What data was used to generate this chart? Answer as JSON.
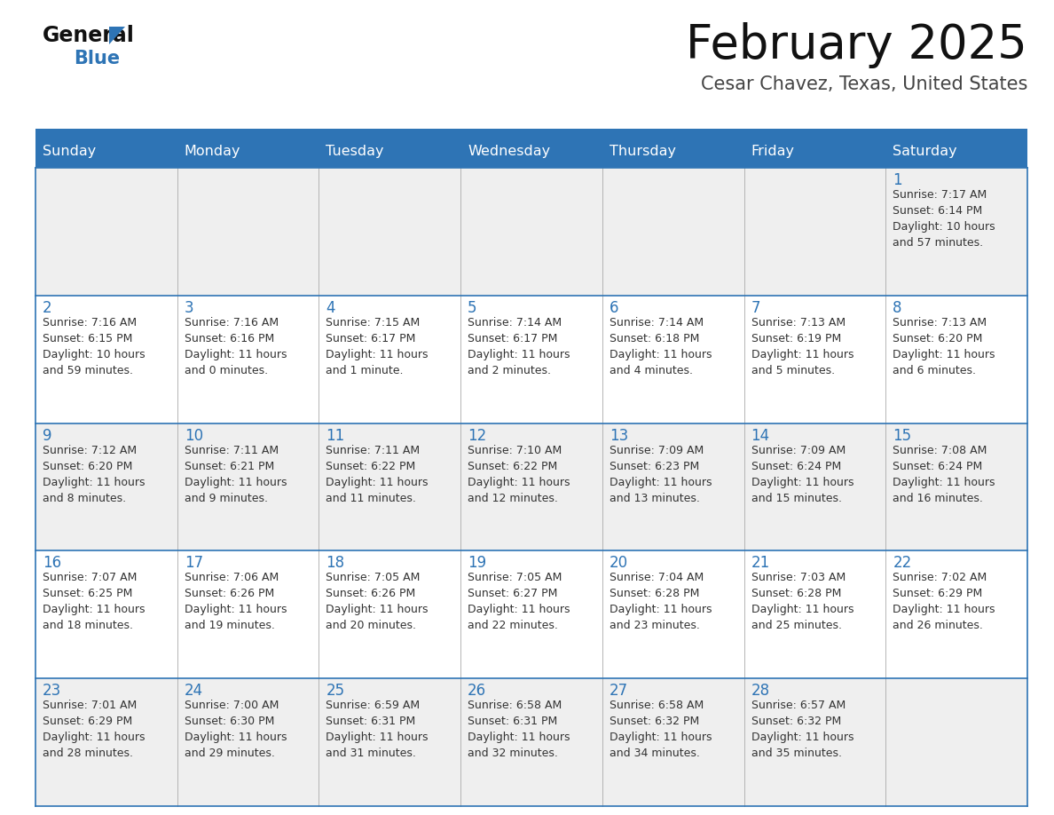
{
  "title": "February 2025",
  "subtitle": "Cesar Chavez, Texas, United States",
  "header_bg": "#2E74B5",
  "header_text_color": "#FFFFFF",
  "cell_bg_odd": "#EFEFEF",
  "cell_bg_even": "#FFFFFF",
  "day_number_color": "#2E74B5",
  "text_color": "#333333",
  "border_color": "#2E74B5",
  "separator_color": "#AAAAAA",
  "days_of_week": [
    "Sunday",
    "Monday",
    "Tuesday",
    "Wednesday",
    "Thursday",
    "Friday",
    "Saturday"
  ],
  "calendar_data": [
    [
      null,
      null,
      null,
      null,
      null,
      null,
      {
        "day": "1",
        "sunrise": "7:17 AM",
        "sunset": "6:14 PM",
        "daylight_h": "10 hours",
        "daylight_m": "57 minutes."
      }
    ],
    [
      {
        "day": "2",
        "sunrise": "7:16 AM",
        "sunset": "6:15 PM",
        "daylight_h": "10 hours",
        "daylight_m": "59 minutes."
      },
      {
        "day": "3",
        "sunrise": "7:16 AM",
        "sunset": "6:16 PM",
        "daylight_h": "11 hours",
        "daylight_m": "0 minutes."
      },
      {
        "day": "4",
        "sunrise": "7:15 AM",
        "sunset": "6:17 PM",
        "daylight_h": "11 hours",
        "daylight_m": "1 minute."
      },
      {
        "day": "5",
        "sunrise": "7:14 AM",
        "sunset": "6:17 PM",
        "daylight_h": "11 hours",
        "daylight_m": "2 minutes."
      },
      {
        "day": "6",
        "sunrise": "7:14 AM",
        "sunset": "6:18 PM",
        "daylight_h": "11 hours",
        "daylight_m": "4 minutes."
      },
      {
        "day": "7",
        "sunrise": "7:13 AM",
        "sunset": "6:19 PM",
        "daylight_h": "11 hours",
        "daylight_m": "5 minutes."
      },
      {
        "day": "8",
        "sunrise": "7:13 AM",
        "sunset": "6:20 PM",
        "daylight_h": "11 hours",
        "daylight_m": "6 minutes."
      }
    ],
    [
      {
        "day": "9",
        "sunrise": "7:12 AM",
        "sunset": "6:20 PM",
        "daylight_h": "11 hours",
        "daylight_m": "8 minutes."
      },
      {
        "day": "10",
        "sunrise": "7:11 AM",
        "sunset": "6:21 PM",
        "daylight_h": "11 hours",
        "daylight_m": "9 minutes."
      },
      {
        "day": "11",
        "sunrise": "7:11 AM",
        "sunset": "6:22 PM",
        "daylight_h": "11 hours",
        "daylight_m": "11 minutes."
      },
      {
        "day": "12",
        "sunrise": "7:10 AM",
        "sunset": "6:22 PM",
        "daylight_h": "11 hours",
        "daylight_m": "12 minutes."
      },
      {
        "day": "13",
        "sunrise": "7:09 AM",
        "sunset": "6:23 PM",
        "daylight_h": "11 hours",
        "daylight_m": "13 minutes."
      },
      {
        "day": "14",
        "sunrise": "7:09 AM",
        "sunset": "6:24 PM",
        "daylight_h": "11 hours",
        "daylight_m": "15 minutes."
      },
      {
        "day": "15",
        "sunrise": "7:08 AM",
        "sunset": "6:24 PM",
        "daylight_h": "11 hours",
        "daylight_m": "16 minutes."
      }
    ],
    [
      {
        "day": "16",
        "sunrise": "7:07 AM",
        "sunset": "6:25 PM",
        "daylight_h": "11 hours",
        "daylight_m": "18 minutes."
      },
      {
        "day": "17",
        "sunrise": "7:06 AM",
        "sunset": "6:26 PM",
        "daylight_h": "11 hours",
        "daylight_m": "19 minutes."
      },
      {
        "day": "18",
        "sunrise": "7:05 AM",
        "sunset": "6:26 PM",
        "daylight_h": "11 hours",
        "daylight_m": "20 minutes."
      },
      {
        "day": "19",
        "sunrise": "7:05 AM",
        "sunset": "6:27 PM",
        "daylight_h": "11 hours",
        "daylight_m": "22 minutes."
      },
      {
        "day": "20",
        "sunrise": "7:04 AM",
        "sunset": "6:28 PM",
        "daylight_h": "11 hours",
        "daylight_m": "23 minutes."
      },
      {
        "day": "21",
        "sunrise": "7:03 AM",
        "sunset": "6:28 PM",
        "daylight_h": "11 hours",
        "daylight_m": "25 minutes."
      },
      {
        "day": "22",
        "sunrise": "7:02 AM",
        "sunset": "6:29 PM",
        "daylight_h": "11 hours",
        "daylight_m": "26 minutes."
      }
    ],
    [
      {
        "day": "23",
        "sunrise": "7:01 AM",
        "sunset": "6:29 PM",
        "daylight_h": "11 hours",
        "daylight_m": "28 minutes."
      },
      {
        "day": "24",
        "sunrise": "7:00 AM",
        "sunset": "6:30 PM",
        "daylight_h": "11 hours",
        "daylight_m": "29 minutes."
      },
      {
        "day": "25",
        "sunrise": "6:59 AM",
        "sunset": "6:31 PM",
        "daylight_h": "11 hours",
        "daylight_m": "31 minutes."
      },
      {
        "day": "26",
        "sunrise": "6:58 AM",
        "sunset": "6:31 PM",
        "daylight_h": "11 hours",
        "daylight_m": "32 minutes."
      },
      {
        "day": "27",
        "sunrise": "6:58 AM",
        "sunset": "6:32 PM",
        "daylight_h": "11 hours",
        "daylight_m": "34 minutes."
      },
      {
        "day": "28",
        "sunrise": "6:57 AM",
        "sunset": "6:32 PM",
        "daylight_h": "11 hours",
        "daylight_m": "35 minutes."
      },
      null
    ]
  ]
}
